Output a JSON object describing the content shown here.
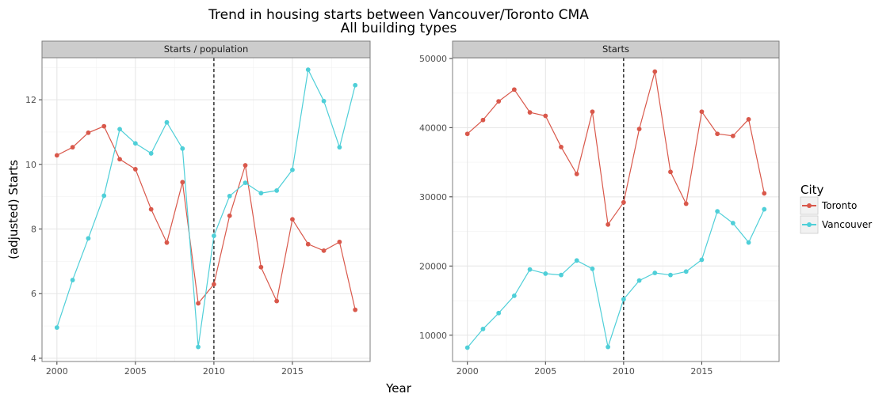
{
  "title_line1": "Trend in housing starts between Vancouver/Toronto CMA",
  "title_line2": "All building types",
  "xlabel": "Year",
  "ylabel": "(adjusted) Starts",
  "legend": {
    "title": "City",
    "items": [
      {
        "label": "Toronto",
        "color": "#d9584b"
      },
      {
        "label": "Vancouver",
        "color": "#4fcfd8"
      }
    ]
  },
  "chart_data": [
    {
      "type": "line",
      "panel_title": "Starts / population",
      "x": [
        2000,
        2001,
        2002,
        2003,
        2004,
        2005,
        2006,
        2007,
        2008,
        2009,
        2010,
        2011,
        2012,
        2013,
        2014,
        2015,
        2016,
        2017,
        2018,
        2019
      ],
      "series": [
        {
          "name": "Toronto",
          "color": "#d9584b",
          "values": [
            10.28,
            10.53,
            10.98,
            11.18,
            10.16,
            9.85,
            8.61,
            7.58,
            9.45,
            5.7,
            6.29,
            8.41,
            9.97,
            6.82,
            5.77,
            8.3,
            7.53,
            7.33,
            7.6,
            5.5
          ]
        },
        {
          "name": "Vancouver",
          "color": "#4fcfd8",
          "values": [
            4.95,
            6.42,
            7.71,
            9.03,
            11.09,
            10.65,
            10.34,
            11.3,
            10.49,
            4.35,
            7.79,
            9.02,
            9.43,
            9.11,
            9.19,
            9.83,
            12.93,
            11.96,
            10.53,
            12.45
          ]
        }
      ],
      "yticks": [
        4,
        6,
        8,
        10,
        12
      ],
      "xticks": [
        2000,
        2005,
        2010,
        2015
      ],
      "ylim": [
        3.9,
        13.3
      ],
      "xlim": [
        1999.05,
        2019.95
      ],
      "vline": 2010
    },
    {
      "type": "line",
      "panel_title": "Starts",
      "x": [
        2000,
        2001,
        2002,
        2003,
        2004,
        2005,
        2006,
        2007,
        2008,
        2009,
        2010,
        2011,
        2012,
        2013,
        2014,
        2015,
        2016,
        2017,
        2018,
        2019
      ],
      "series": [
        {
          "name": "Toronto",
          "color": "#d9584b",
          "values": [
            39100,
            41100,
            43800,
            45500,
            42200,
            41700,
            37200,
            33300,
            42300,
            26000,
            29200,
            39800,
            48100,
            33600,
            29000,
            42300,
            39100,
            38800,
            41200,
            30500
          ]
        },
        {
          "name": "Vancouver",
          "color": "#4fcfd8",
          "values": [
            8200,
            10900,
            13200,
            15700,
            19500,
            18900,
            18700,
            20800,
            19600,
            8300,
            15200,
            17900,
            19000,
            18700,
            19200,
            20900,
            27900,
            26200,
            23400,
            28200
          ]
        }
      ],
      "yticks": [
        10000,
        20000,
        30000,
        40000,
        50000
      ],
      "xticks": [
        2000,
        2005,
        2010,
        2015
      ],
      "ylim": [
        6200,
        50100
      ],
      "xlim": [
        1999.05,
        2019.95
      ],
      "vline": 2010
    }
  ]
}
